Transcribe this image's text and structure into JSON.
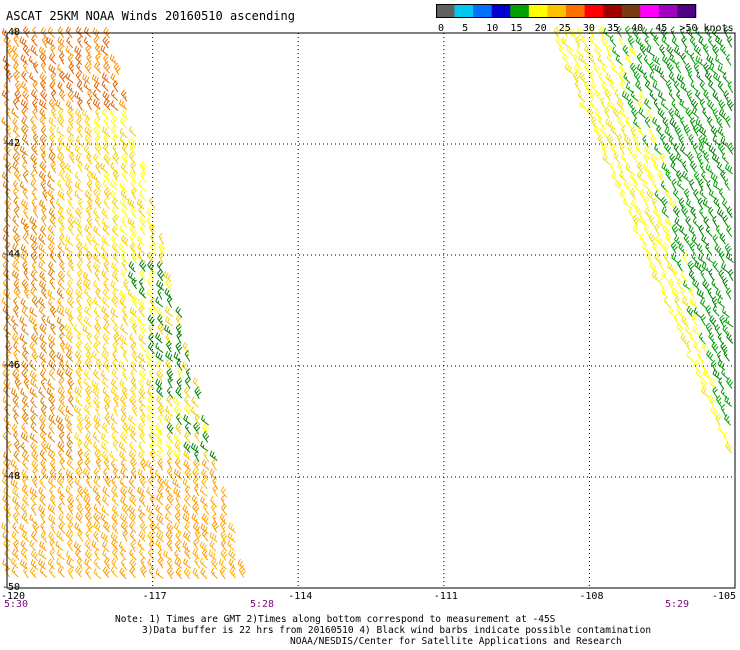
{
  "title": "ASCAT 25KM NOAA Winds 20160510 ascending",
  "colorbar": {
    "colors": [
      "#606060",
      "#00c8f0",
      "#0070ff",
      "#0000d0",
      "#00a000",
      "#ffff00",
      "#ffc000",
      "#ff7000",
      "#ff0000",
      "#a00000",
      "#7a3a10",
      "#ff00ff",
      "#a000c0",
      "#500080"
    ],
    "labels": [
      "0",
      "5",
      "10",
      "15",
      "20",
      "25",
      "30",
      "35",
      "40",
      "45",
      ">50 knots"
    ]
  },
  "map": {
    "lon_ticks": [
      "-120",
      "-117",
      "-114",
      "-111",
      "-108",
      "-105"
    ],
    "lat_ticks": [
      "-40",
      "-42",
      "-44",
      "-46",
      "-48",
      "-50"
    ],
    "lon_range": [
      -120,
      -105
    ],
    "lat_range": [
      -50,
      -40
    ],
    "grid": true,
    "time_labels": [
      "5:30",
      "5:28",
      "5:29"
    ],
    "swaths": [
      {
        "name": "left",
        "wind_speed_range_knots": [
          20,
          35
        ],
        "dominant_colors": [
          "#ff9000",
          "#ffc000",
          "#ffff00"
        ]
      },
      {
        "name": "right",
        "wind_speed_range_knots": [
          15,
          25
        ],
        "dominant_colors": [
          "#00a000",
          "#ffff00"
        ]
      }
    ]
  },
  "notes": {
    "line1": "Note: 1) Times are GMT 2)Times along bottom correspond to measurement at -45S",
    "line2": "3)Data buffer is 22 hrs from 20160510 4) Black wind barbs indicate possible contamination",
    "line3": "NOAA/NESDIS/Center for Satellite Applications and Research"
  }
}
